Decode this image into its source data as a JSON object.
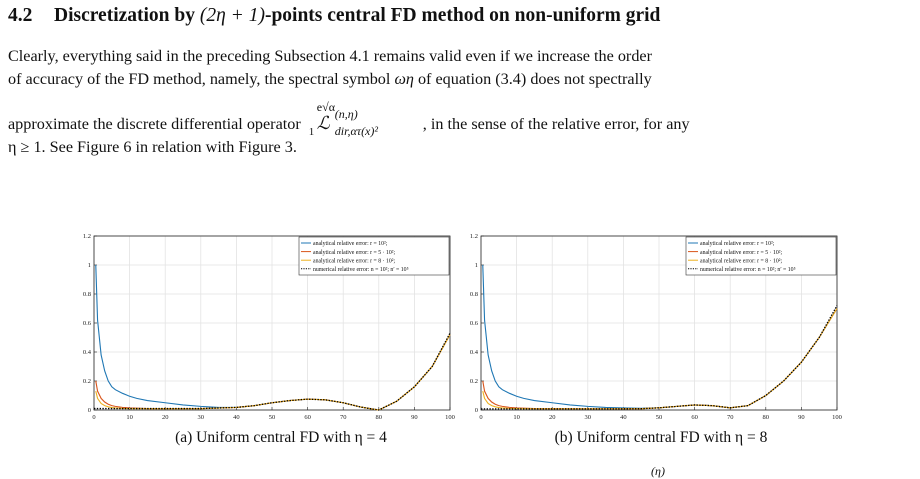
{
  "section": {
    "number": "4.2",
    "title_pre": "Discretization by ",
    "title_math": "(2η + 1)",
    "title_post": "-points central FD method on non-uniform grid"
  },
  "paragraph": {
    "line1": "Clearly, everything said in the preceding Subsection 4.1 remains valid even if we increase the order",
    "line2_a": "of accuracy of the FD method, namely, the spectral symbol ",
    "line2_sym": "ωη",
    "line2_b": " of equation (3.4) does not spectrally",
    "line3_a": "approximate the discrete differential operator",
    "op_top": "e√α",
    "op_main": "ℒ",
    "op_sup": "(n,η)",
    "op_sub": "dir,ατ(x)²",
    "op_lower": "1",
    "line3_b": ", in the sense of the relative error, for any",
    "line4": "η ≥ 1. See Figure 6 in relation with Figure 3."
  },
  "figures": [
    {
      "caption": "(a) Uniform central FD with η = 4",
      "chart_data": {
        "type": "line",
        "xlim": [
          0,
          100
        ],
        "ylim": [
          0,
          1.2
        ],
        "grid": true,
        "legend": "top-right",
        "xticks": [
          0,
          10,
          20,
          30,
          40,
          50,
          60,
          70,
          80,
          90,
          100
        ],
        "yticks": [
          0,
          0.2,
          0.4,
          0.6,
          0.8,
          1,
          1.2
        ],
        "ytick_labels": [
          "0",
          "0.2",
          "0.4",
          "0.6",
          "0.8",
          "1",
          "1.2"
        ],
        "series": [
          {
            "name": "analytical relative error: r = 10²;",
            "color": "#1f77b4",
            "style": "solid",
            "x": [
              0.5,
              1,
              2,
              3,
              4,
              5,
              6,
              8,
              10,
              12,
              15,
              20,
              25,
              30,
              35,
              40,
              45,
              50,
              55,
              60,
              65,
              70,
              75,
              80,
              85,
              90,
              95,
              100
            ],
            "y": [
              1.0,
              0.62,
              0.38,
              0.27,
              0.2,
              0.16,
              0.14,
              0.115,
              0.095,
              0.08,
              0.065,
              0.05,
              0.035,
              0.025,
              0.018,
              0.018,
              0.03,
              0.05,
              0.065,
              0.075,
              0.07,
              0.05,
              0.02,
              0.0,
              0.06,
              0.16,
              0.3,
              0.52
            ]
          },
          {
            "name": "analytical relative error: r = 5 · 10²;",
            "color": "#d9541a",
            "style": "solid",
            "x": [
              0.5,
              1,
              2,
              3,
              4,
              5,
              6,
              8,
              10,
              15,
              20,
              30,
              40,
              45,
              50,
              55,
              60,
              65,
              70,
              75,
              80,
              85,
              90,
              95,
              100
            ],
            "y": [
              0.2,
              0.13,
              0.08,
              0.055,
              0.04,
              0.03,
              0.025,
              0.018,
              0.014,
              0.01,
              0.01,
              0.01,
              0.018,
              0.03,
              0.05,
              0.065,
              0.075,
              0.07,
              0.05,
              0.02,
              0.0,
              0.06,
              0.16,
              0.3,
              0.52
            ]
          },
          {
            "name": "analytical relative error: r = 8 · 10²;",
            "color": "#edb120",
            "style": "solid",
            "x": [
              0.5,
              1,
              2,
              3,
              4,
              5,
              6,
              8,
              10,
              15,
              20,
              30,
              40,
              45,
              50,
              55,
              60,
              65,
              70,
              75,
              80,
              85,
              90,
              95,
              100
            ],
            "y": [
              0.13,
              0.08,
              0.045,
              0.03,
              0.022,
              0.017,
              0.014,
              0.011,
              0.01,
              0.009,
              0.009,
              0.009,
              0.018,
              0.03,
              0.05,
              0.065,
              0.075,
              0.07,
              0.05,
              0.02,
              0.0,
              0.06,
              0.16,
              0.3,
              0.52
            ]
          },
          {
            "name": "numerical relative error: n = 10²; n′ = 10⁵",
            "color": "#000000",
            "style": "dotted",
            "x": [
              0,
              5,
              10,
              20,
              30,
              40,
              45,
              50,
              55,
              60,
              65,
              70,
              75,
              80,
              85,
              90,
              95,
              100
            ],
            "y": [
              0.01,
              0.01,
              0.01,
              0.01,
              0.01,
              0.018,
              0.03,
              0.05,
              0.065,
              0.075,
              0.07,
              0.05,
              0.02,
              0.0,
              0.06,
              0.16,
              0.3,
              0.53
            ]
          }
        ]
      }
    },
    {
      "caption": "(b) Uniform central FD with η = 8",
      "chart_data": {
        "type": "line",
        "xlim": [
          0,
          100
        ],
        "ylim": [
          0,
          1.2
        ],
        "grid": true,
        "legend": "top-right",
        "xticks": [
          0,
          10,
          20,
          30,
          40,
          50,
          60,
          70,
          80,
          90,
          100
        ],
        "yticks": [
          0,
          0.2,
          0.4,
          0.6,
          0.8,
          1,
          1.2
        ],
        "ytick_labels": [
          "0",
          "0.2",
          "0.4",
          "0.6",
          "0.8",
          "1",
          "1.2"
        ],
        "series": [
          {
            "name": "analytical relative error: r = 10²;",
            "color": "#1f77b4",
            "style": "solid",
            "x": [
              0.5,
              1,
              2,
              3,
              4,
              5,
              6,
              8,
              10,
              12,
              15,
              20,
              25,
              30,
              35,
              40,
              45,
              50,
              55,
              60,
              65,
              70,
              75,
              80,
              85,
              90,
              95,
              100
            ],
            "y": [
              1.0,
              0.62,
              0.38,
              0.27,
              0.2,
              0.16,
              0.14,
              0.115,
              0.095,
              0.08,
              0.065,
              0.05,
              0.035,
              0.025,
              0.018,
              0.014,
              0.012,
              0.015,
              0.025,
              0.035,
              0.03,
              0.015,
              0.03,
              0.1,
              0.2,
              0.33,
              0.5,
              0.7
            ]
          },
          {
            "name": "analytical relative error: r = 5 · 10²;",
            "color": "#d9541a",
            "style": "solid",
            "x": [
              0.5,
              1,
              2,
              3,
              4,
              5,
              6,
              8,
              10,
              15,
              20,
              30,
              40,
              45,
              50,
              55,
              60,
              65,
              70,
              75,
              80,
              85,
              90,
              95,
              100
            ],
            "y": [
              0.2,
              0.13,
              0.08,
              0.055,
              0.04,
              0.03,
              0.025,
              0.018,
              0.014,
              0.01,
              0.009,
              0.008,
              0.008,
              0.009,
              0.015,
              0.025,
              0.035,
              0.03,
              0.015,
              0.03,
              0.1,
              0.2,
              0.33,
              0.5,
              0.7
            ]
          },
          {
            "name": "analytical relative error: r = 8 · 10²;",
            "color": "#edb120",
            "style": "solid",
            "x": [
              0.5,
              1,
              2,
              3,
              4,
              5,
              6,
              8,
              10,
              15,
              20,
              30,
              40,
              45,
              50,
              55,
              60,
              65,
              70,
              75,
              80,
              85,
              90,
              95,
              100
            ],
            "y": [
              0.13,
              0.08,
              0.045,
              0.03,
              0.022,
              0.017,
              0.014,
              0.011,
              0.01,
              0.008,
              0.008,
              0.008,
              0.008,
              0.009,
              0.015,
              0.025,
              0.035,
              0.03,
              0.015,
              0.03,
              0.1,
              0.2,
              0.33,
              0.5,
              0.7
            ]
          },
          {
            "name": "numerical relative error: n = 10²; n′ = 10⁵",
            "color": "#000000",
            "style": "dotted",
            "x": [
              0,
              5,
              10,
              20,
              30,
              40,
              45,
              50,
              55,
              60,
              65,
              70,
              75,
              80,
              85,
              90,
              95,
              100
            ],
            "y": [
              0.008,
              0.008,
              0.008,
              0.008,
              0.008,
              0.008,
              0.009,
              0.015,
              0.025,
              0.035,
              0.03,
              0.015,
              0.03,
              0.1,
              0.2,
              0.33,
              0.5,
              0.72
            ]
          }
        ]
      }
    }
  ],
  "footer_fragment": "(η)"
}
